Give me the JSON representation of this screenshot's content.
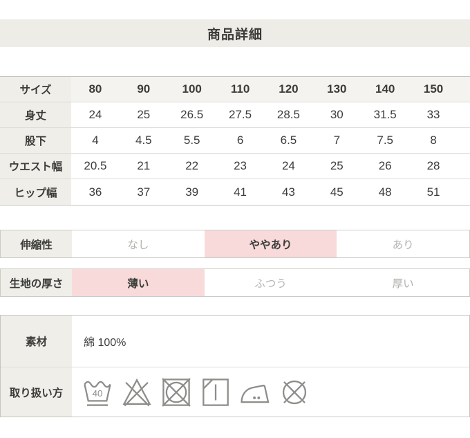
{
  "page": {
    "title": "商品詳細"
  },
  "size_table": {
    "header_label": "サイズ",
    "sizes": [
      "80",
      "90",
      "100",
      "110",
      "120",
      "130",
      "140",
      "150"
    ],
    "rows": [
      {
        "label": "身丈",
        "values": [
          "24",
          "25",
          "26.5",
          "27.5",
          "28.5",
          "30",
          "31.5",
          "33"
        ]
      },
      {
        "label": "股下",
        "values": [
          "4",
          "4.5",
          "5.5",
          "6",
          "6.5",
          "7",
          "7.5",
          "8"
        ]
      },
      {
        "label": "ウエスト幅",
        "values": [
          "20.5",
          "21",
          "22",
          "23",
          "24",
          "25",
          "26",
          "28"
        ]
      },
      {
        "label": "ヒップ幅",
        "values": [
          "36",
          "37",
          "39",
          "41",
          "43",
          "45",
          "48",
          "51"
        ]
      }
    ]
  },
  "attributes": [
    {
      "label": "伸縮性",
      "options": [
        "なし",
        "ややあり",
        "あり"
      ],
      "selected_index": 1
    },
    {
      "label": "生地の厚さ",
      "options": [
        "薄い",
        "ふつう",
        "厚い"
      ],
      "selected_index": 0
    }
  ],
  "details": {
    "material_label": "素材",
    "material_value": "綿 100%",
    "care_label": "取り扱い方",
    "care_icons": [
      {
        "name": "wash-40-mild-icon",
        "number": "40"
      },
      {
        "name": "no-bleach-icon"
      },
      {
        "name": "no-tumble-dry-icon"
      },
      {
        "name": "shade-hang-dry-icon"
      },
      {
        "name": "iron-medium-icon"
      },
      {
        "name": "no-dry-clean-icon"
      }
    ]
  },
  "colors": {
    "accent_pink": "#f8dada",
    "label_bg": "#efeee9",
    "band_bg": "#edece7",
    "muted_text": "#b2b2ae",
    "dark_text": "#3c3c3a",
    "icon_gray": "#8d8d89"
  }
}
